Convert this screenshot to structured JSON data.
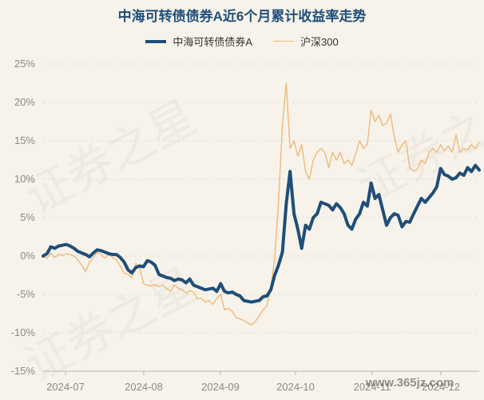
{
  "chart_data": {
    "type": "line",
    "title": "中海可转债债券A近6个月累计收益率走势",
    "x_labels": [
      "2024-07",
      "2024-08",
      "2024-09",
      "2024-10",
      "2024-11",
      "2024-12"
    ],
    "y_ticks": [
      "25%",
      "20%",
      "15%",
      "10%",
      "5%",
      "0%",
      "-5%",
      "-10%",
      "-15%"
    ],
    "ylim": [
      -15,
      25
    ],
    "grid": true,
    "legend_position": "top-center",
    "series": [
      {
        "name": "中海可转债债券A",
        "color": "#1f4e79",
        "values": [
          0,
          0.3,
          1.2,
          1.0,
          1.3,
          1.4,
          1.5,
          1.3,
          1.0,
          0.6,
          0.4,
          0.2,
          -0.1,
          0.4,
          0.8,
          0.7,
          0.5,
          0.3,
          0.2,
          0.2,
          -0.2,
          -0.8,
          -1.8,
          -2.2,
          -1.5,
          -1.3,
          -1.4,
          -0.6,
          -0.8,
          -1.2,
          -2.4,
          -2.6,
          -2.8,
          -2.9,
          -3.2,
          -3.0,
          -3.1,
          -3.5,
          -3.0,
          -3.8,
          -4.0,
          -4.2,
          -4.4,
          -4.3,
          -4.2,
          -4.6,
          -3.6,
          -4.6,
          -4.8,
          -4.7,
          -5.0,
          -5.2,
          -5.8,
          -5.9,
          -6.0,
          -5.9,
          -5.8,
          -5.3,
          -5.2,
          -4.4,
          -2.5,
          -1.2,
          0.5,
          6.8,
          11.0,
          5.5,
          3.5,
          1.0,
          4.0,
          3.5,
          5.0,
          5.5,
          7.0,
          6.8,
          6.6,
          6.0,
          6.8,
          6.3,
          5.5,
          4.0,
          3.5,
          4.8,
          5.5,
          7.0,
          6.5,
          9.5,
          7.5,
          8.0,
          6.0,
          4.0,
          5.0,
          5.5,
          5.3,
          3.8,
          4.5,
          4.4,
          5.5,
          6.5,
          7.5,
          7.0,
          7.6,
          8.2,
          9.0,
          11.4,
          10.6,
          10.4,
          10.0,
          10.2,
          10.8,
          10.5,
          11.5,
          11.0,
          11.8,
          11.2
        ]
      },
      {
        "name": "沪深300",
        "color": "#f0b87a",
        "values": [
          0,
          -0.3,
          0.4,
          -0.2,
          0.2,
          0.1,
          0.3,
          0.2,
          0,
          -0.5,
          -1.2,
          -2.0,
          -0.8,
          -0.2,
          0.5,
          0.2,
          -0.3,
          0.2,
          -0.2,
          -0.5,
          -1.3,
          -2.2,
          -2.4,
          -2.8,
          -1.0,
          -1.4,
          -3.6,
          -3.8,
          -3.9,
          -3.7,
          -4.0,
          -3.8,
          -4.2,
          -4.6,
          -3.8,
          -4.2,
          -4.4,
          -4.8,
          -4.5,
          -4.7,
          -5.6,
          -5.5,
          -6.0,
          -5.8,
          -6.3,
          -5.5,
          -5.0,
          -7.0,
          -6.8,
          -7.2,
          -8.0,
          -8.2,
          -8.4,
          -8.7,
          -9.0,
          -8.5,
          -7.8,
          -7.0,
          -6.5,
          -4.2,
          -0.3,
          7.0,
          17.0,
          22.5,
          14.0,
          15.0,
          13.0,
          14.5,
          11.0,
          10.0,
          12.5,
          13.5,
          14.0,
          13.5,
          11.5,
          13.5,
          12.5,
          13.5,
          12.0,
          12.5,
          11.8,
          13.3,
          15.0,
          14.0,
          14.5,
          19.0,
          17.5,
          18.3,
          17.0,
          17.3,
          18.5,
          15.5,
          13.5,
          14.5,
          15.0,
          11.5,
          11.0,
          11.3,
          12.5,
          12.0,
          13.5,
          14.0,
          13.5,
          14.5,
          13.7,
          14.3,
          13.5,
          15.8,
          13.5,
          14.0,
          13.8,
          14.5,
          14.0,
          14.8
        ]
      }
    ]
  },
  "watermark_text": "www.365jz.com"
}
